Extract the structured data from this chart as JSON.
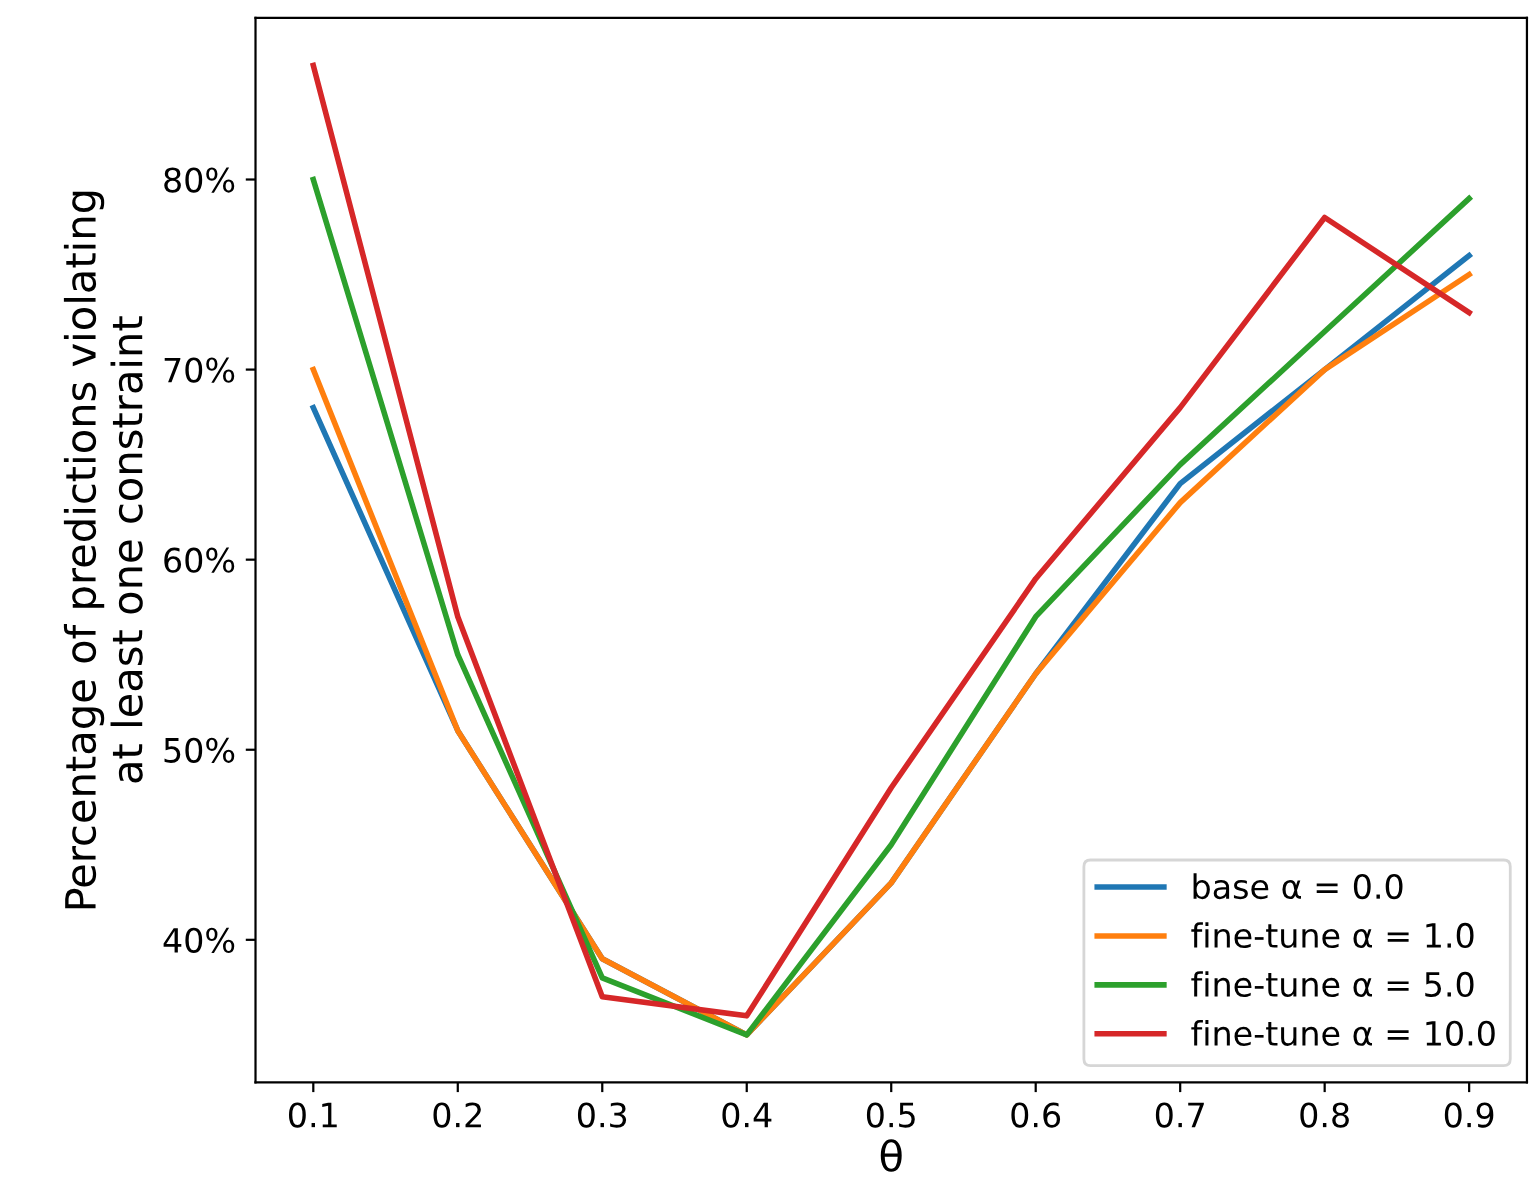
{
  "chart_data": {
    "type": "line",
    "xlabel": "θ",
    "ylabel": "Percentage of predictions violating\nat least one constraint",
    "x": [
      0.1,
      0.2,
      0.3,
      0.4,
      0.5,
      0.6,
      0.7,
      0.8,
      0.9
    ],
    "series": [
      {
        "name": "base α = 0.0",
        "color": "#1f77b4",
        "values": [
          68,
          51,
          39,
          35,
          43,
          54,
          64,
          70,
          76
        ]
      },
      {
        "name": "fine-tune α = 1.0",
        "color": "#ff7f0e",
        "values": [
          70,
          51,
          39,
          35,
          43,
          54,
          63,
          70,
          75
        ]
      },
      {
        "name": "fine-tune α = 5.0",
        "color": "#2ca02c",
        "values": [
          80,
          55,
          38,
          35,
          45,
          57,
          65,
          72,
          79
        ]
      },
      {
        "name": "fine-tune α = 10.0",
        "color": "#d62728",
        "values": [
          86,
          57,
          37,
          36,
          48,
          59,
          68,
          78,
          73
        ]
      }
    ],
    "xlim": [
      0.06,
      0.94
    ],
    "ylim": [
      32.5,
      88.5
    ],
    "xticks": [
      0.1,
      0.2,
      0.3,
      0.4,
      0.5,
      0.6,
      0.7,
      0.8,
      0.9
    ],
    "yticks": [
      {
        "value": 40,
        "label": "40%"
      },
      {
        "value": 50,
        "label": "50%"
      },
      {
        "value": 60,
        "label": "60%"
      },
      {
        "value": 70,
        "label": "70%"
      },
      {
        "value": 80,
        "label": "80%"
      }
    ],
    "legend": "bottom right",
    "grid": false,
    "marker": "none",
    "line_style": "solid"
  }
}
